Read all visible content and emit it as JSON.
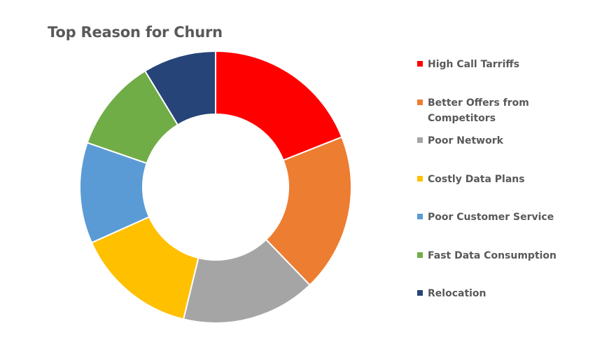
{
  "chart_data": {
    "type": "pie",
    "title": "Top Reason for Churn",
    "donut": true,
    "legend_position": "right",
    "series": [
      {
        "categories": [
          "High Call Tarriffs",
          "Better Offers from Competitors",
          "Poor Network",
          "Costly Data Plans",
          "Poor Customer Service",
          "Fast Data Consumption",
          "Relocation"
        ],
        "values": [
          19,
          18.8,
          16,
          14.5,
          12,
          11,
          8.7
        ],
        "colors": [
          "#FF0000",
          "#ED7D31",
          "#A5A5A5",
          "#FFC000",
          "#5B9BD5",
          "#70AD47",
          "#264478"
        ]
      }
    ]
  }
}
